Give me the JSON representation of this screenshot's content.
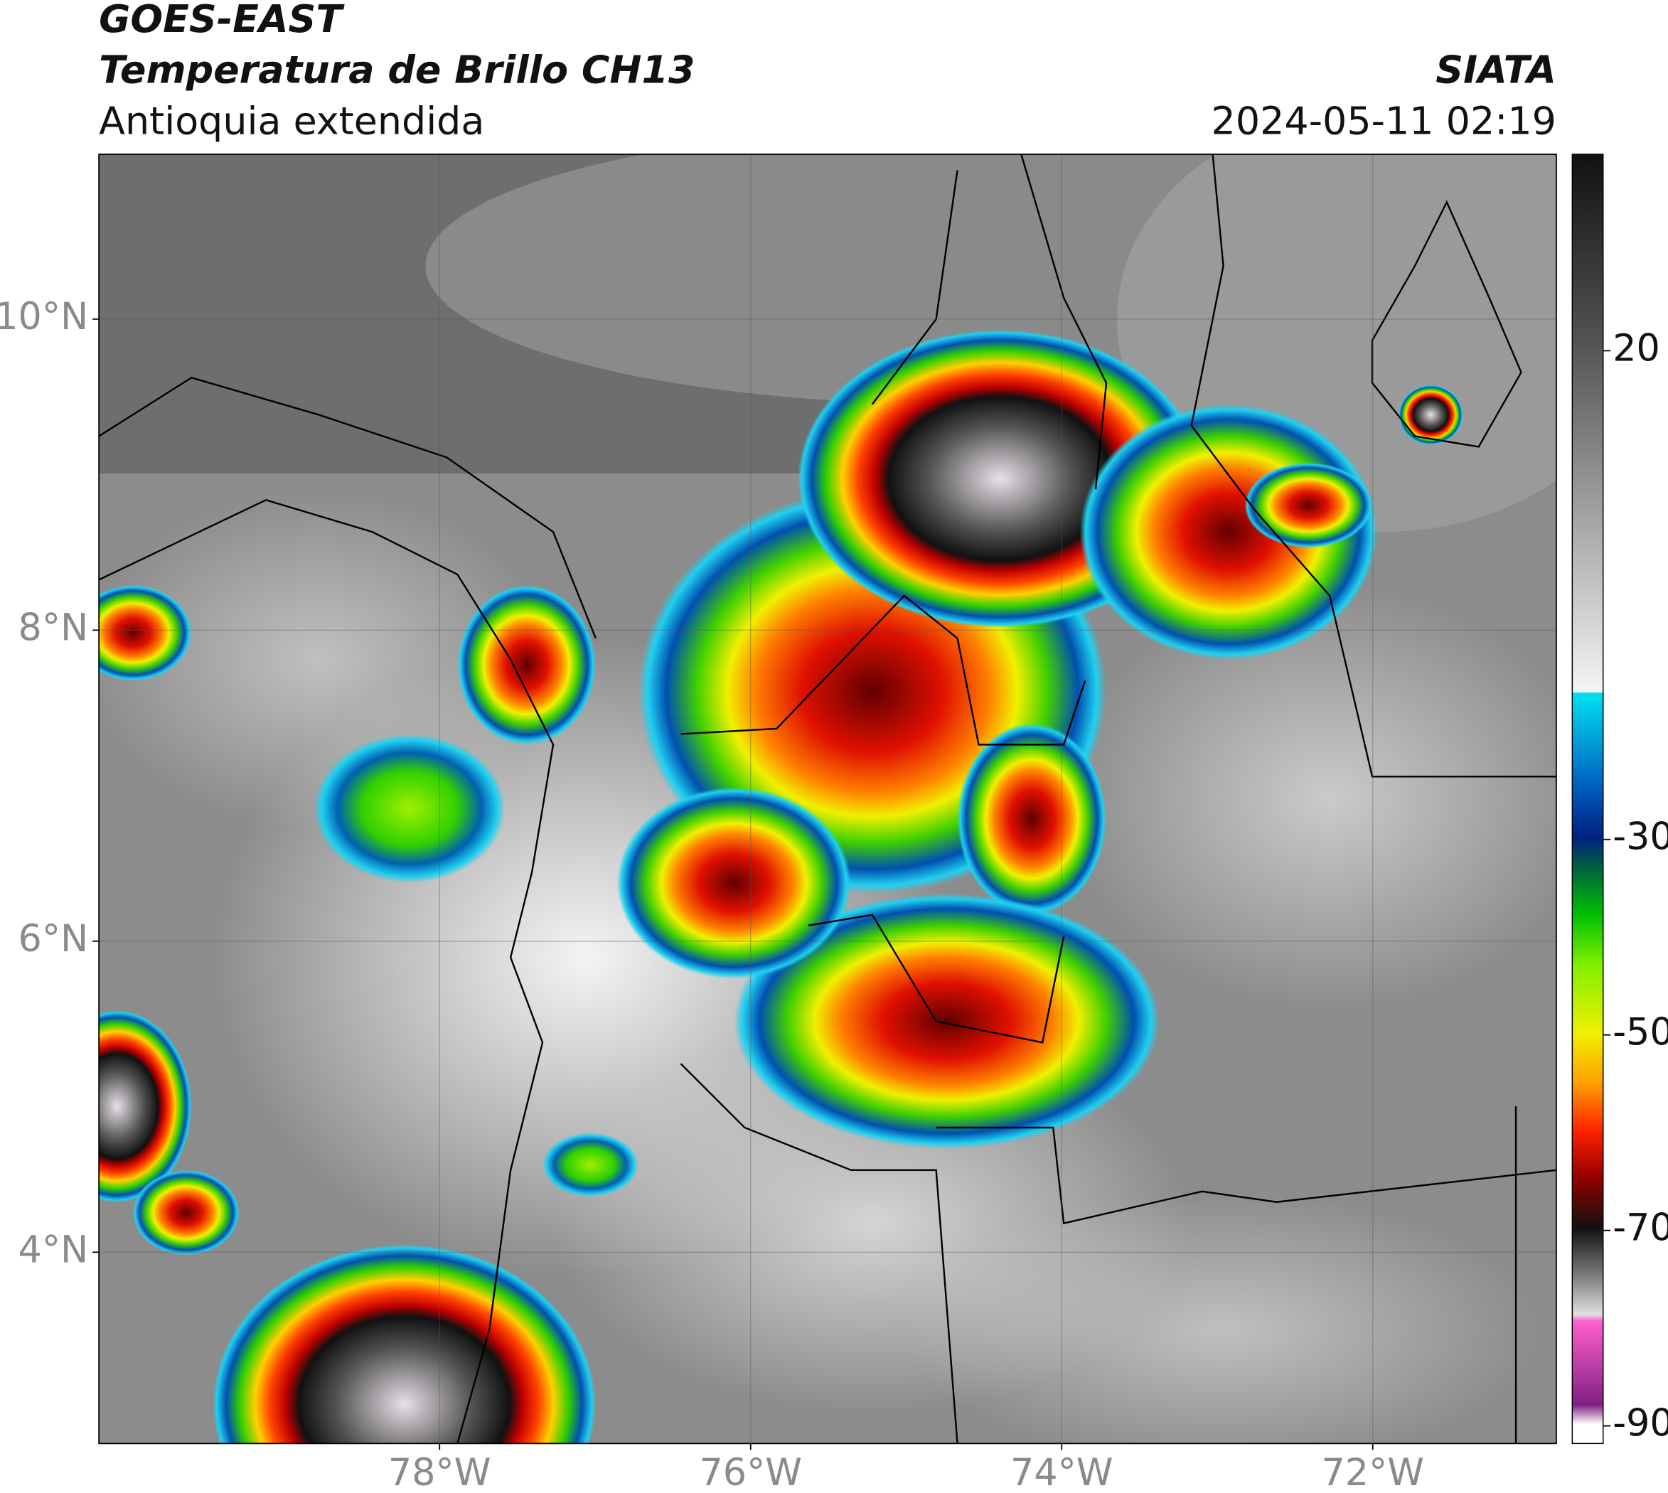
{
  "header": {
    "title": "GOES-EAST",
    "subtitle": "Temperatura de Brillo CH13",
    "region": "Antioquia extendida",
    "source": "SIATA",
    "datetime": "2024-05-11 02:19"
  },
  "map": {
    "lon_range": [
      -80.19,
      -70.82
    ],
    "lat_range": [
      2.77,
      11.06
    ],
    "lat_ticks": [
      {
        "value": 10,
        "label": "10°N"
      },
      {
        "value": 8,
        "label": "8°N"
      },
      {
        "value": 6,
        "label": "6°N"
      },
      {
        "value": 4,
        "label": "4°N"
      }
    ],
    "lon_ticks": [
      {
        "value": -78,
        "label": "78°W"
      },
      {
        "value": -76,
        "label": "76°W"
      },
      {
        "value": -74,
        "label": "74°W"
      },
      {
        "value": -72,
        "label": "72°W"
      }
    ]
  },
  "colorbar": {
    "range": [
      -91.8,
      40.1
    ],
    "ticks": [
      20,
      -30,
      -50,
      -70,
      -90
    ]
  }
}
